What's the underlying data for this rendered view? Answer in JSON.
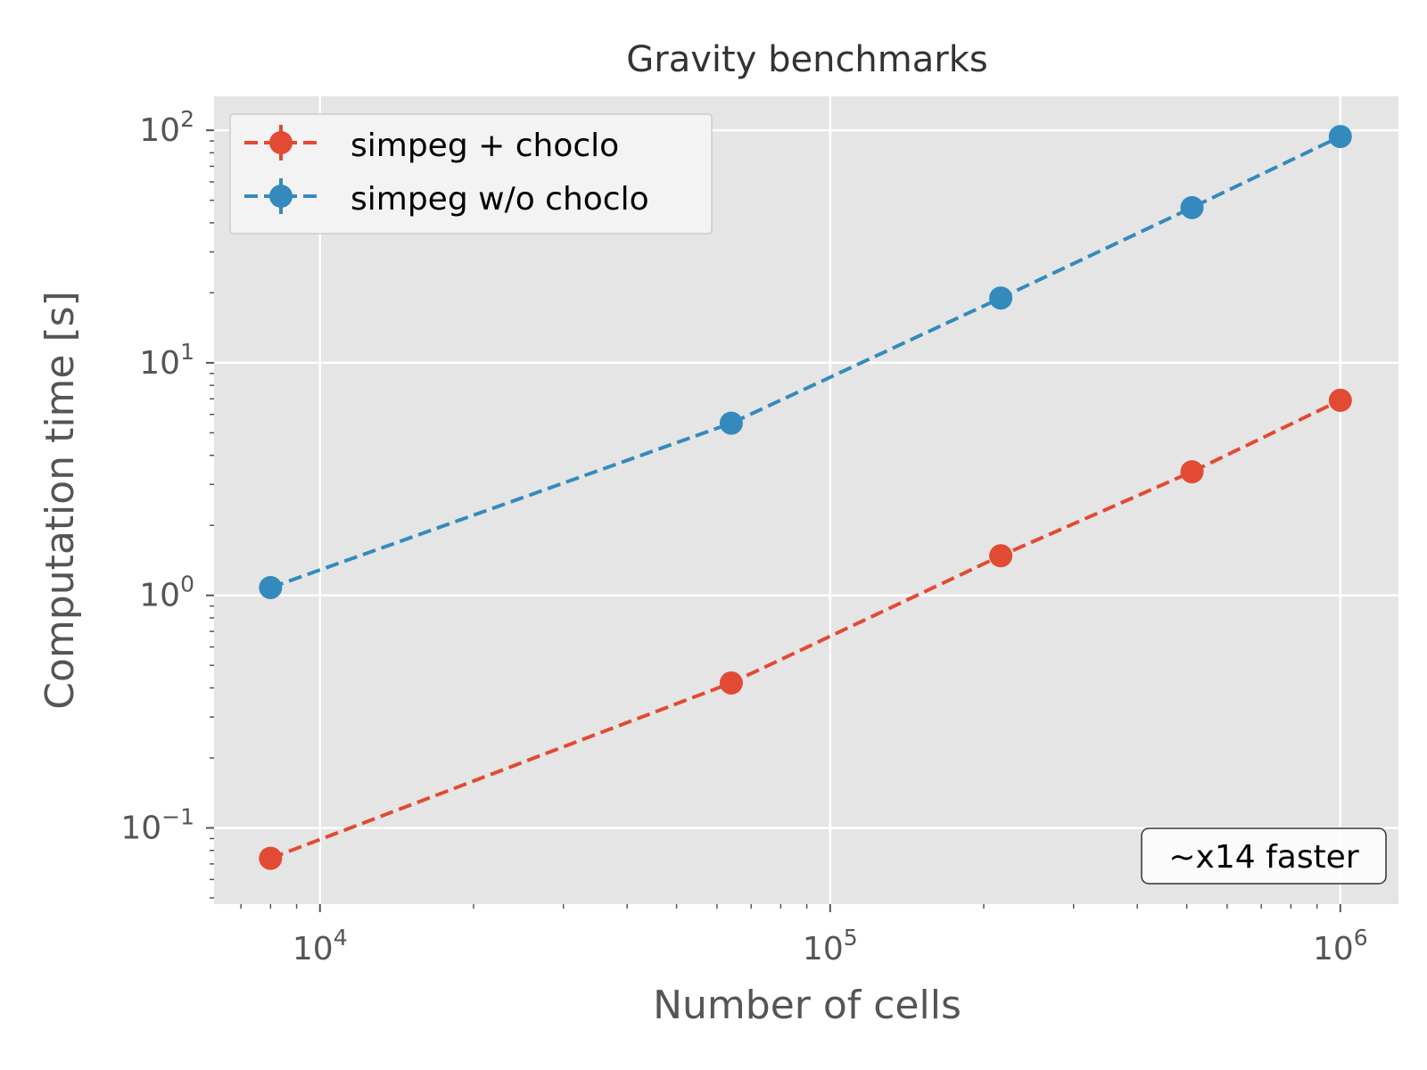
{
  "chart_data": {
    "type": "line",
    "title": "Gravity benchmarks",
    "xlabel": "Number of cells",
    "ylabel": "Computation time [s]",
    "xscale": "log",
    "yscale": "log",
    "xlim": [
      6200,
      1300000
    ],
    "ylim": [
      0.047,
      140
    ],
    "grid": true,
    "legend": "top-left",
    "x": [
      8000,
      64000,
      216000,
      512000,
      1000000
    ],
    "series": [
      {
        "name": "simpeg + choclo",
        "color": "#E24A33",
        "values": [
          0.074,
          0.42,
          1.48,
          3.4,
          6.9
        ]
      },
      {
        "name": "simpeg w/o choclo",
        "color": "#348ABD",
        "values": [
          1.08,
          5.5,
          19.0,
          46.5,
          94.0
        ]
      }
    ],
    "x_ticks": [
      {
        "value": 10000,
        "base": "10",
        "exp": "4"
      },
      {
        "value": 100000,
        "base": "10",
        "exp": "5"
      },
      {
        "value": 1000000,
        "base": "10",
        "exp": "6"
      }
    ],
    "y_ticks": [
      {
        "value": 0.1,
        "base": "10",
        "exp": "−1"
      },
      {
        "value": 1,
        "base": "10",
        "exp": "0"
      },
      {
        "value": 10,
        "base": "10",
        "exp": "1"
      },
      {
        "value": 100,
        "base": "10",
        "exp": "2"
      }
    ],
    "annotation": "~x14 faster",
    "colors": {
      "plot_bg": "#E5E5E5",
      "grid": "#FFFFFF",
      "text": "#555555"
    }
  }
}
